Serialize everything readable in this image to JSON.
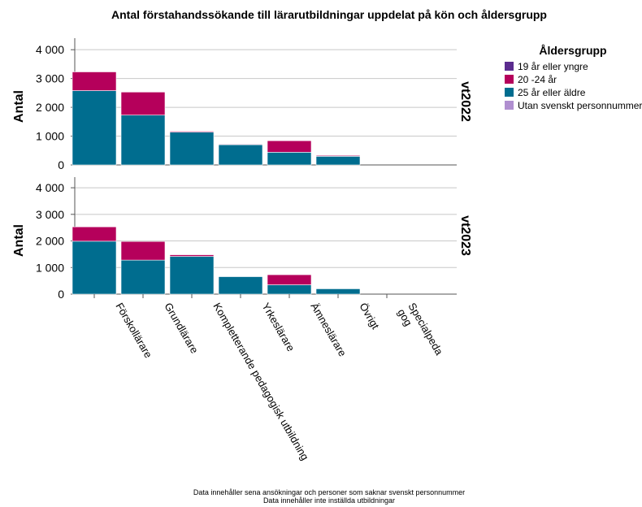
{
  "chart_data": {
    "type": "bar",
    "stacked": true,
    "title": "Antal förstahandssökande till lärarutbildningar uppdelat på kön och åldersgrupp",
    "ylabel": "Antal",
    "ylim": [
      0,
      4400
    ],
    "yticks": [
      0,
      1000,
      2000,
      3000,
      4000
    ],
    "ytick_labels": [
      "0",
      "1 000",
      "2 000",
      "3 000",
      "4 000"
    ],
    "grid": true,
    "categories": [
      "Förskollärare",
      "Grundlärare",
      "Kompletterande pedagogisk utbildning",
      "Yrkeslärare",
      "Ämneslärare",
      "Övrigt",
      "Specialpeda gog"
    ],
    "category_label_lines": [
      [
        "Förskollärare"
      ],
      [
        "Grundlärare"
      ],
      [
        "Kompletterande pedagogisk utbildning"
      ],
      [
        "Yrkeslärare"
      ],
      [
        "Ämneslärare"
      ],
      [
        "Övrigt"
      ],
      [
        "Specialpeda",
        "gog"
      ]
    ],
    "legend": {
      "title": "Åldersgrupp",
      "position": "top-right",
      "entries": [
        {
          "name": "19 år eller yngre",
          "color": "#5b2c8f"
        },
        {
          "name": "20 -24 år",
          "color": "#b5005b"
        },
        {
          "name": "25 år eller äldre",
          "color": "#006d8f"
        },
        {
          "name": "Utan svenskt personnummer",
          "color": "#b08fd0"
        }
      ]
    },
    "panels": [
      {
        "label": "vt2022",
        "series": [
          {
            "name": "19 år eller yngre",
            "values": [
              0,
              0,
              0,
              0,
              0,
              0,
              0
            ]
          },
          {
            "name": "25 år eller äldre",
            "values": [
              2580,
              1730,
              1140,
              700,
              440,
              300,
              0
            ]
          },
          {
            "name": "20 -24 år",
            "values": [
              650,
              800,
              30,
              20,
              400,
              30,
              0
            ]
          },
          {
            "name": "Utan svenskt personnummer",
            "values": [
              0,
              0,
              0,
              0,
              0,
              0,
              0
            ]
          }
        ]
      },
      {
        "label": "vt2023",
        "series": [
          {
            "name": "19 år eller yngre",
            "values": [
              0,
              0,
              0,
              0,
              0,
              0,
              0
            ]
          },
          {
            "name": "25 år eller äldre",
            "values": [
              1990,
              1280,
              1420,
              660,
              350,
              200,
              0
            ]
          },
          {
            "name": "20 -24 år",
            "values": [
              540,
              700,
              60,
              10,
              380,
              0,
              0
            ]
          },
          {
            "name": "Utan svenskt personnummer",
            "values": [
              0,
              0,
              0,
              0,
              0,
              0,
              0
            ]
          }
        ]
      }
    ],
    "footnotes": [
      "Data innehåller sena ansökningar och personer som saknar svenskt personnummer",
      "Data innehåller inte inställda utbildningar"
    ]
  }
}
